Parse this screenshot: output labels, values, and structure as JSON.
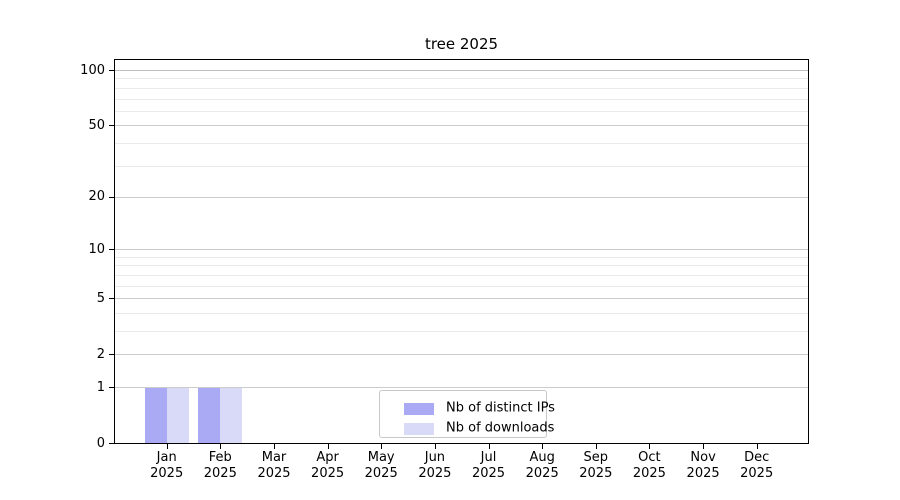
{
  "page": {
    "background": "#ffffff"
  },
  "chart_data": {
    "type": "bar",
    "title": "tree 2025",
    "categories": [
      "Jan 2025",
      "Feb 2025",
      "Mar 2025",
      "Apr 2025",
      "May 2025",
      "Jun 2025",
      "Jul 2025",
      "Aug 2025",
      "Sep 2025",
      "Oct 2025",
      "Nov 2025",
      "Dec 2025"
    ],
    "x_tick_month": [
      "Jan",
      "Feb",
      "Mar",
      "Apr",
      "May",
      "Jun",
      "Jul",
      "Aug",
      "Sep",
      "Oct",
      "Nov",
      "Dec"
    ],
    "x_tick_year": "2025",
    "series": [
      {
        "name": "Nb of distinct IPs",
        "color": "#a9a9f4",
        "values": [
          1,
          1,
          0,
          0,
          0,
          0,
          0,
          0,
          0,
          0,
          0,
          0
        ]
      },
      {
        "name": "Nb of downloads",
        "color": "#d9d9f8",
        "values": [
          1,
          1,
          0,
          0,
          0,
          0,
          0,
          0,
          0,
          0,
          0,
          0
        ]
      }
    ],
    "y_axis": {
      "scale": "log1p",
      "major_ticks": [
        0,
        1,
        2,
        5,
        10,
        20,
        50,
        100
      ],
      "minor_ticks": [
        3,
        4,
        6,
        7,
        8,
        9,
        30,
        40,
        60,
        70,
        80,
        90
      ],
      "ylim": [
        0,
        100
      ]
    },
    "legend": {
      "position": "bottom-center",
      "entries": [
        "Nb of distinct IPs",
        "Nb of downloads"
      ]
    },
    "grid": true
  },
  "colors": {
    "grid_major": "#cccccc",
    "grid_minor": "#eaeaea",
    "grid_top": "#bdbdbd",
    "axis": "#000000",
    "legend_border": "#c8c8c8",
    "legend_bg": "#ffffff"
  }
}
